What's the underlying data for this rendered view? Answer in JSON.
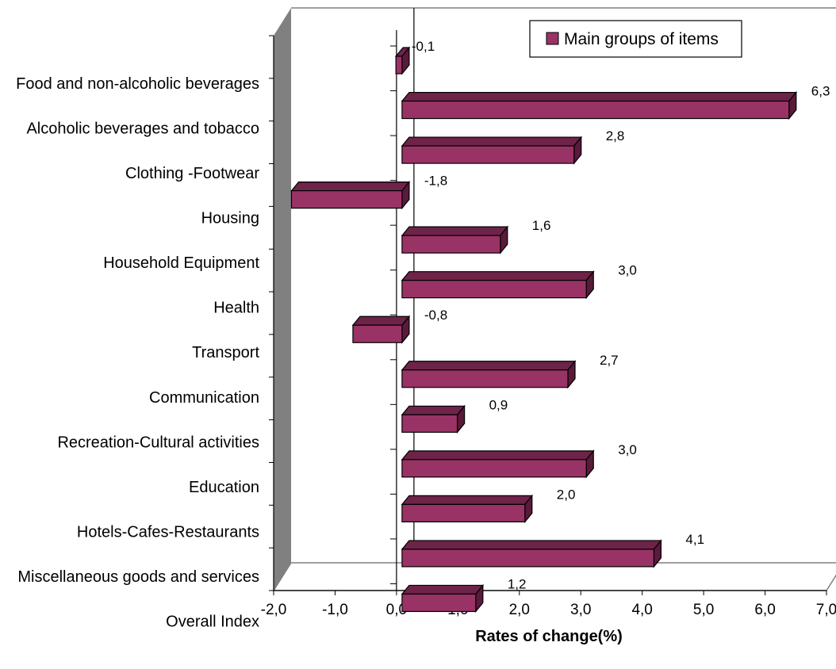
{
  "chart_data": {
    "type": "bar",
    "orientation": "horizontal",
    "style": "3d",
    "categories": [
      "Food and non-alcoholic beverages",
      "Alcoholic beverages and tobacco",
      "Clothing -Footwear",
      "Housing",
      "Household Equipment",
      "Health",
      "Transport",
      "Communication",
      "Recreation-Cultural activities",
      "Education",
      "Hotels-Cafes-Restaurants",
      "Miscellaneous goods and services",
      "Overall Index"
    ],
    "series": [
      {
        "name": "Main groups of items",
        "values": [
          -0.1,
          6.3,
          2.8,
          -1.8,
          1.6,
          3.0,
          -0.8,
          2.7,
          0.9,
          3.0,
          2.0,
          4.1,
          1.2
        ],
        "labels": [
          "-0,1",
          "6,3",
          "2,8",
          "-1,8",
          "1,6",
          "3,0",
          "-0,8",
          "2,7",
          "0,9",
          "3,0",
          "2,0",
          "4,1",
          "1,2"
        ]
      }
    ],
    "xlabel": "Rates of change(%)",
    "xlim": [
      -2.0,
      7.0
    ],
    "xticks": [
      "-2,0",
      "-1,0",
      "0,0",
      "1,0",
      "2,0",
      "3,0",
      "4,0",
      "5,0",
      "6,0",
      "7,0"
    ],
    "legend": {
      "position": "top-right",
      "entries": [
        "Main groups of items"
      ]
    },
    "grid": false,
    "colors": {
      "bar_front": "#993366",
      "bar_top": "#6e2348",
      "bar_side": "#5a1a3a",
      "wall": "#808080",
      "floor_line": "#808080"
    }
  }
}
